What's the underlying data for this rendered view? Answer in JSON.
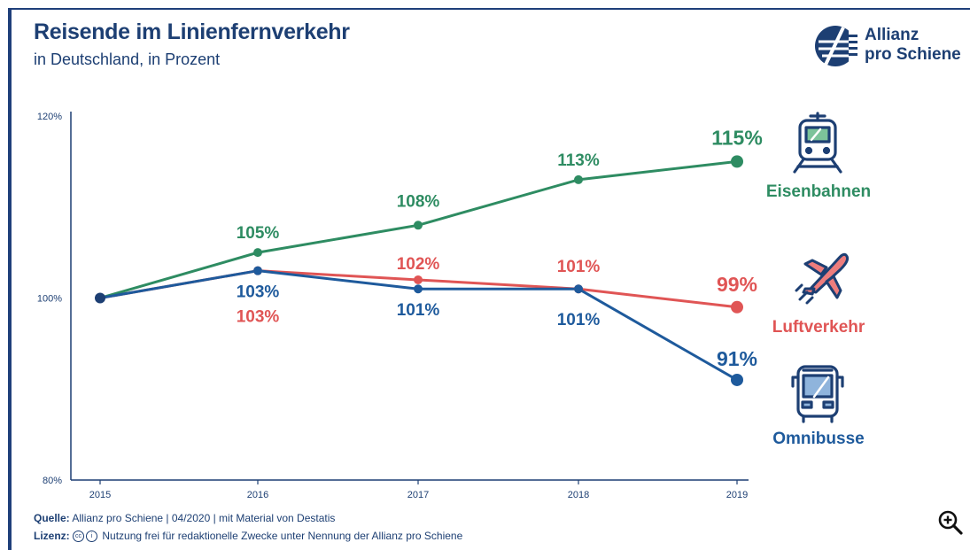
{
  "title": "Reisende im Linienfernverkehr",
  "subtitle": "in Deutschland, in Prozent",
  "logo": {
    "line1": "Allianz",
    "line2": "pro Schiene",
    "icon": "allianz-pro-schiene-logo"
  },
  "footer": {
    "source_label": "Quelle:",
    "source_text": "Allianz pro Schiene | 04/2020 | mit Material von Destatis",
    "license_label": "Lizenz:",
    "license_icons": [
      "cc",
      "i"
    ],
    "license_text": "Nutzung frei für redaktionelle Zwecke unter Nennung der Allianz pro Schiene"
  },
  "zoom_icon": "zoom-in-icon",
  "chart_data": {
    "type": "line",
    "title": "Reisende im Linienfernverkehr",
    "subtitle": "in Deutschland, in Prozent",
    "categories": [
      "2015",
      "2016",
      "2017",
      "2018",
      "2019"
    ],
    "y_ticks": [
      "120%",
      "100%",
      "80%"
    ],
    "ylim": [
      80,
      120
    ],
    "grid": false,
    "series": [
      {
        "name": "Eisenbahnen",
        "color": "#2e8c62",
        "icon": "train-icon",
        "values": [
          100,
          105,
          108,
          113,
          115
        ],
        "labels": [
          "",
          "105%",
          "108%",
          "113%",
          "115%"
        ]
      },
      {
        "name": "Luftverkehr",
        "color": "#e05555",
        "icon": "airplane-icon",
        "values": [
          100,
          103,
          102,
          101,
          99
        ],
        "labels": [
          "",
          "103%",
          "102%",
          "101%",
          "99%"
        ]
      },
      {
        "name": "Omnibusse",
        "color": "#1e5a9c",
        "icon": "bus-icon",
        "values": [
          100,
          103,
          101,
          101,
          91
        ],
        "labels": [
          "",
          "103%",
          "101%",
          "101%",
          "91%"
        ]
      }
    ]
  }
}
